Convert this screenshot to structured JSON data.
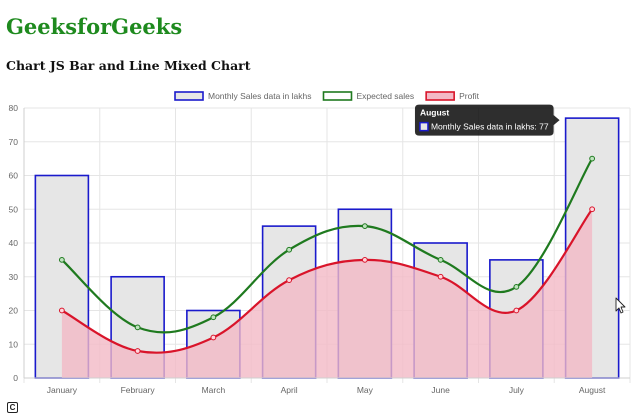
{
  "header": {
    "site_title": "GeeksforGeeks",
    "page_heading": "Chart JS Bar and Line Mixed Chart"
  },
  "chart_data": {
    "type": "bar",
    "categories": [
      "January",
      "February",
      "March",
      "April",
      "May",
      "June",
      "July",
      "August"
    ],
    "series": [
      {
        "name": "Monthly Sales data in lakhs",
        "type": "bar",
        "values": [
          60,
          30,
          20,
          45,
          50,
          40,
          35,
          77
        ],
        "border_color": "#1a1acc",
        "fill_color": "#e6e6e6"
      },
      {
        "name": "Expected sales",
        "type": "line",
        "values": [
          35,
          15,
          18,
          38,
          45,
          35,
          27,
          65
        ],
        "border_color": "#1f7a1f",
        "fill": false
      },
      {
        "name": "Profit",
        "type": "area",
        "values": [
          20,
          8,
          12,
          29,
          35,
          30,
          20,
          50
        ],
        "border_color": "#d9142a",
        "fill_color": "#f3b9c6"
      }
    ],
    "y_ticks": [
      0,
      10,
      20,
      30,
      40,
      50,
      60,
      70,
      80
    ],
    "ylim": [
      0,
      80
    ],
    "grid": true,
    "legend_position": "top",
    "tooltip": {
      "title": "August",
      "label": "Monthly Sales data in lakhs: 77",
      "color": "#1a1acc"
    }
  }
}
